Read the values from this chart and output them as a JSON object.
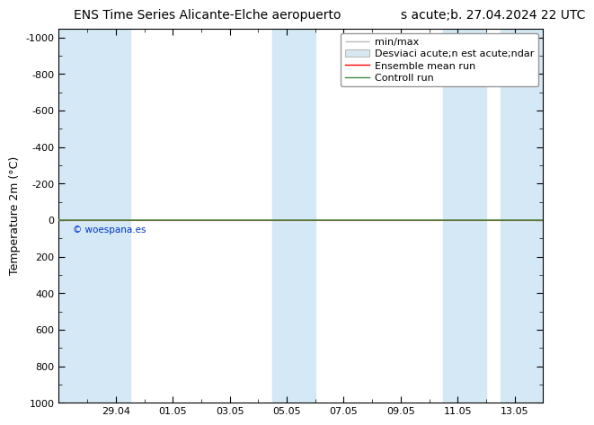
{
  "title_left": "ENS Time Series Alicante-Elche aeropuerto",
  "title_right": "s acute;b. 27.04.2024 22 UTC",
  "ylabel": "Temperature 2m (°C)",
  "ylim_bottom": 1000,
  "ylim_top": -1050,
  "yticks": [
    -1000,
    -800,
    -600,
    -400,
    -200,
    0,
    200,
    400,
    600,
    800,
    1000
  ],
  "xtick_labels": [
    "29.04",
    "01.05",
    "03.05",
    "05.05",
    "07.05",
    "09.05",
    "11.05",
    "13.05"
  ],
  "xtick_positions": [
    2,
    4,
    6,
    8,
    10,
    12,
    14,
    16
  ],
  "xlim": [
    0,
    17
  ],
  "shaded_bands": [
    [
      0,
      2.5
    ],
    [
      7.5,
      9
    ],
    [
      13.5,
      15
    ],
    [
      15.5,
      17
    ]
  ],
  "band_color": "#d4e8f5",
  "ensemble_mean_color": "#ff0000",
  "control_run_color": "#448844",
  "background_color": "#ffffff",
  "copyright_text": "© woespana.es",
  "copyright_color": "#0033cc",
  "legend_entry1": "min/max",
  "legend_entry2": "Desviaci acute;n est acute;ndar",
  "legend_entry3": "Ensemble mean run",
  "legend_entry4": "Controll run",
  "legend_gray": "#bbbbbb",
  "title_fontsize": 10,
  "axis_label_fontsize": 9,
  "tick_fontsize": 8,
  "legend_fontsize": 8
}
